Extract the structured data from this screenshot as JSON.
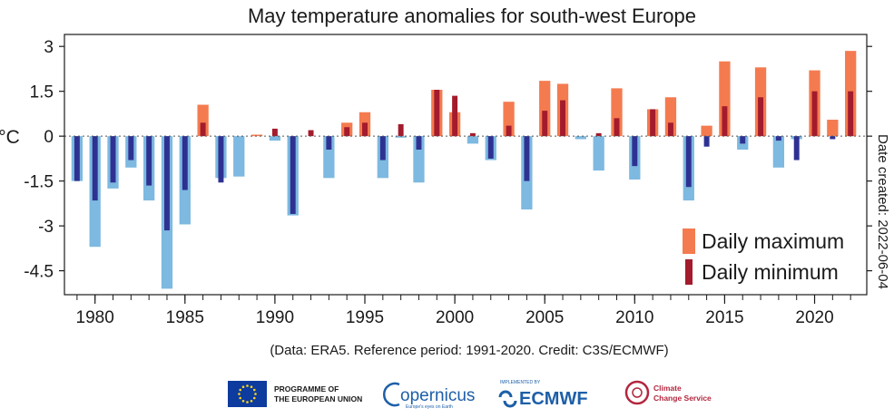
{
  "chart_data": {
    "type": "bar",
    "title": "May temperature anomalies  for south-west Europe",
    "ylabel": "°C",
    "ylim": [
      -5.3,
      3.4
    ],
    "yticks": [
      3,
      1.5,
      0,
      -1.5,
      -3,
      -4.5
    ],
    "ytick_labels": [
      "3",
      "1.5",
      "0",
      "-1.5",
      "-3",
      "-4.5"
    ],
    "xlim": [
      1978.3,
      2022.9
    ],
    "xticks": [
      1980,
      1985,
      1990,
      1995,
      2000,
      2005,
      2010,
      2015,
      2020
    ],
    "xtick_labels": [
      "1980",
      "1985",
      "1990",
      "1995",
      "2000",
      "2005",
      "2010",
      "2015",
      "2020"
    ],
    "grid": false,
    "legend_position": "bottom-right",
    "x": [
      1979,
      1980,
      1981,
      1982,
      1983,
      1984,
      1985,
      1986,
      1987,
      1988,
      1989,
      1990,
      1991,
      1992,
      1993,
      1994,
      1995,
      1996,
      1997,
      1998,
      1999,
      2000,
      2001,
      2002,
      2003,
      2004,
      2005,
      2006,
      2007,
      2008,
      2009,
      2010,
      2011,
      2012,
      2013,
      2014,
      2015,
      2016,
      2017,
      2018,
      2019,
      2020,
      2021,
      2022
    ],
    "series": [
      {
        "name": "Daily maximum",
        "positive_color": "#f47b4f",
        "negative_color": "#7db9e0",
        "values": [
          -1.5,
          -3.7,
          -1.75,
          -1.05,
          -2.15,
          -5.1,
          -2.95,
          1.05,
          -1.4,
          -1.35,
          0.05,
          -0.15,
          -2.65,
          0.0,
          -1.4,
          0.45,
          0.8,
          -1.4,
          -0.05,
          -1.55,
          1.55,
          0.8,
          -0.25,
          -0.8,
          1.15,
          -2.45,
          1.85,
          1.75,
          -0.1,
          -1.15,
          1.6,
          -1.45,
          0.9,
          1.3,
          -2.15,
          0.35,
          2.5,
          -0.45,
          2.3,
          -1.05,
          -0.1,
          2.2,
          0.55,
          2.85
        ]
      },
      {
        "name": "Daily minimum",
        "positive_color": "#a31b2c",
        "negative_color": "#2e3192",
        "values": [
          -1.5,
          -2.15,
          -1.55,
          -0.8,
          -1.65,
          -3.15,
          -1.8,
          0.45,
          -1.55,
          0.0,
          0.0,
          0.25,
          -2.6,
          0.2,
          -0.45,
          0.3,
          0.45,
          -0.8,
          0.4,
          -0.45,
          1.55,
          1.35,
          0.1,
          -0.75,
          0.35,
          -1.5,
          0.85,
          1.2,
          0.0,
          0.1,
          0.6,
          -1.0,
          0.9,
          0.45,
          -1.7,
          -0.35,
          1.0,
          -0.25,
          1.3,
          -0.15,
          -0.8,
          1.5,
          -0.1,
          1.5
        ]
      }
    ],
    "side_note": "Date created: 2022-06-04",
    "source_note": "(Data: ERA5.  Reference period: 1991-2020.  Credit: C3S/ECMWF)"
  },
  "logos": {
    "eu_line1": "PROGRAMME OF",
    "eu_line2": "THE EUROPEAN UNION",
    "copernicus": "opernicus",
    "copernicus_tagline": "Europe's eyes on Earth",
    "ecmwf_tag": "IMPLEMENTED BY",
    "ecmwf": "ECMWF",
    "c3s_line1": "Climate",
    "c3s_line2": "Change Service",
    "eu_flag_color": "#0d3b9e",
    "eu_star_color": "#ffd617",
    "brand_blue": "#1d5fa8",
    "c3s_red": "#b3263e"
  }
}
